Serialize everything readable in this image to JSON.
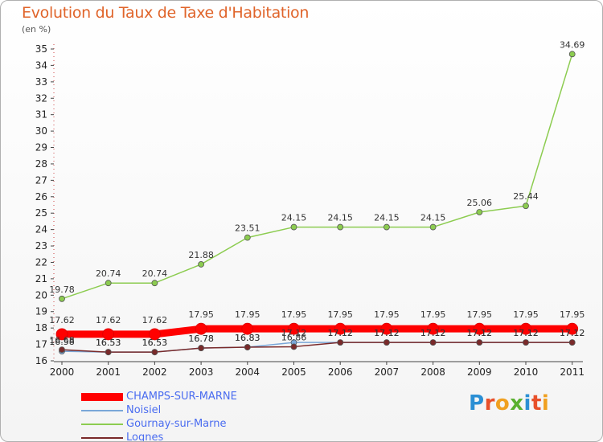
{
  "header": {
    "title": "Evolution du Taux de Taxe d'Habitation",
    "unit": "(en %)"
  },
  "logo": {
    "text": "Proxiti",
    "letters": [
      "P",
      "r",
      "o",
      "x",
      "i",
      "t",
      "i"
    ],
    "colors": [
      "#2b8fd4",
      "#e8502a",
      "#f0a020",
      "#5ab030",
      "#2b8fd4",
      "#e8502a",
      "#f0a020"
    ]
  },
  "chart_data": {
    "type": "line",
    "title": "Evolution du Taux de Taxe d'Habitation",
    "ylabel": "(en %)",
    "xlabel": "",
    "categories": [
      "2000",
      "2001",
      "2002",
      "2003",
      "2004",
      "2005",
      "2006",
      "2007",
      "2008",
      "2009",
      "2010",
      "2011"
    ],
    "ylim": [
      16,
      35
    ],
    "yticks": [
      16,
      17,
      18,
      19,
      20,
      21,
      22,
      23,
      24,
      25,
      26,
      27,
      28,
      29,
      30,
      31,
      32,
      33,
      34,
      35
    ],
    "grid": false,
    "legend_position": "bottom-left",
    "series": [
      {
        "name": "CHAMPS-SUR-MARNE",
        "color": "#ff0000",
        "values": [
          17.62,
          17.62,
          17.62,
          17.95,
          17.95,
          17.95,
          17.95,
          17.95,
          17.95,
          17.95,
          17.95,
          17.95
        ],
        "labels": [
          "17.62",
          "17.62",
          "17.62",
          "17.95",
          "17.95",
          "17.95",
          "17.95",
          "17.95",
          "17.95",
          "17.95",
          "17.95",
          "17.95"
        ],
        "label_position": "above",
        "emphasis": true
      },
      {
        "name": "Noisiel",
        "color": "#7aa7d8",
        "values": [
          16.58,
          16.53,
          16.53,
          16.78,
          16.83,
          17.12,
          17.12,
          17.12,
          17.12,
          17.12,
          17.12,
          17.12
        ],
        "labels": [
          "16.58",
          "16.53",
          "16.53",
          "16.78",
          "16.83",
          "17.12",
          "17.12",
          "17.12",
          "17.12",
          "17.12",
          "17.12",
          "17.12"
        ],
        "label_position": "above"
      },
      {
        "name": "Gournay-sur-Marne",
        "color": "#8ccc50",
        "values": [
          19.78,
          20.74,
          20.74,
          21.88,
          23.51,
          24.15,
          24.15,
          24.15,
          24.15,
          25.06,
          25.44,
          34.69
        ],
        "labels": [
          "19.78",
          "20.74",
          "20.74",
          "21.88",
          "23.51",
          "24.15",
          "24.15",
          "24.15",
          "24.15",
          "25.06",
          "25.44",
          "34.69"
        ],
        "label_position": "above"
      },
      {
        "name": "Lognes",
        "color": "#7a2a2a",
        "values": [
          16.68,
          16.53,
          16.53,
          16.78,
          16.83,
          16.86,
          17.12,
          17.12,
          17.12,
          17.12,
          17.12,
          17.12
        ],
        "labels": [
          "16.68",
          "16.53",
          "16.53",
          "16.78",
          "16.83",
          "16.86",
          "17.12",
          "17.12",
          "17.12",
          "17.12",
          "17.12",
          "17.12"
        ],
        "label_position": "above"
      }
    ]
  }
}
